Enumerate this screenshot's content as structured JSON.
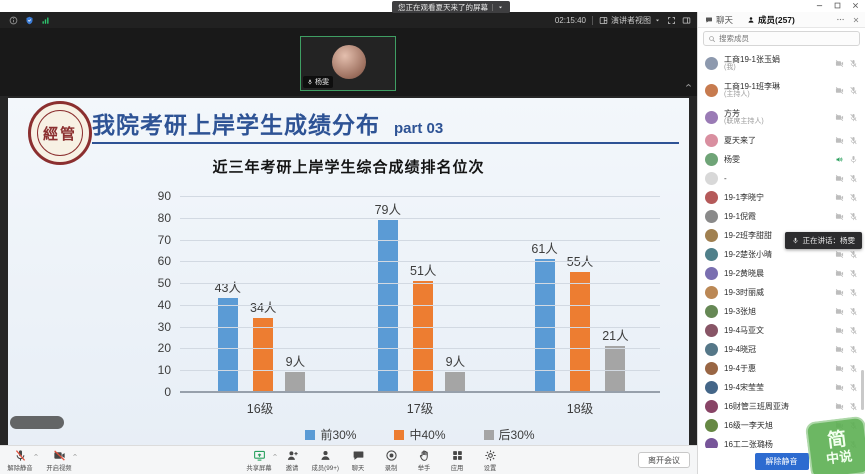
{
  "colors": {
    "accent_blue": "#2d6bd0",
    "share_green": "#27a05e",
    "slash_red": "#e0503c",
    "title_blue": "#2e5395",
    "watermark_green": "#4caf50",
    "bar_blue": "#5B9BD5",
    "bar_orange": "#ED7D31",
    "bar_gray": "#A5A5A5"
  },
  "window": {
    "tooltip": "您正在观看夏天来了的屏幕"
  },
  "topbar": {
    "timer": "02:15:40",
    "view_mode": "演讲者视图"
  },
  "video_thumbnail": {
    "name": "杨雯"
  },
  "slide": {
    "logo_text": "經管",
    "title": "我院考研上岸学生成绩分布",
    "part": "part 03",
    "subtitle": "近三年考研上岸学生综合成绩排名位次"
  },
  "chart_data": {
    "type": "bar",
    "title": "近三年考研上岸学生综合成绩排名位次",
    "categories": [
      "16级",
      "17级",
      "18级"
    ],
    "series": [
      {
        "name": "前30%",
        "color": "#5B9BD5",
        "values": [
          43,
          79,
          61
        ]
      },
      {
        "name": "中40%",
        "color": "#ED7D31",
        "values": [
          34,
          51,
          55
        ]
      },
      {
        "name": "后30%",
        "color": "#A5A5A5",
        "values": [
          9,
          9,
          21
        ]
      }
    ],
    "unit": "人",
    "ylim": [
      0,
      90
    ],
    "ytick_step": 10,
    "grid": true,
    "legend_position": "bottom",
    "xlabel": "",
    "ylabel": ""
  },
  "toolbar": {
    "left_items": [
      {
        "label": "解除静音",
        "icon": "mic-off",
        "caret": true
      },
      {
        "label": "开启视频",
        "icon": "camera-off",
        "caret": true
      }
    ],
    "center_items": [
      {
        "label": "共享屏幕",
        "icon": "share",
        "caret": true
      },
      {
        "label": "邀请",
        "icon": "invite"
      },
      {
        "label": "成员(99+)",
        "icon": "person"
      },
      {
        "label": "聊天",
        "icon": "chat"
      },
      {
        "label": "录制",
        "icon": "record"
      },
      {
        "label": "举手",
        "icon": "hand"
      },
      {
        "label": "应用",
        "icon": "apps"
      },
      {
        "label": "设置",
        "icon": "gear"
      }
    ],
    "leave_label": "离开会议"
  },
  "panel": {
    "tabs": [
      {
        "label": "聊天"
      },
      {
        "label": "成员(257)"
      }
    ],
    "search_placeholder": "搜索成员",
    "speaking_tooltip": "正在讲话：杨雯",
    "unmute_label": "解除静音",
    "members": [
      {
        "name": "工商19-1张玉娟",
        "sub": "(我)"
      },
      {
        "name": "工商19-1班李琳",
        "sub": "(主持人)"
      },
      {
        "name": "方芳",
        "sub": "(联席主持人)"
      },
      {
        "name": "夏天来了"
      },
      {
        "name": "杨雯",
        "speaking": true
      },
      {
        "name": "-"
      },
      {
        "name": "19-1李晓宁"
      },
      {
        "name": "19-1倪霞"
      },
      {
        "name": "19-2班李甜甜"
      },
      {
        "name": "19-2楚张小晴"
      },
      {
        "name": "19-2黄晓晨"
      },
      {
        "name": "19-3时丽威"
      },
      {
        "name": "19-3张旭"
      },
      {
        "name": "19-4马亚文"
      },
      {
        "name": "19-4晓冠"
      },
      {
        "name": "19-4于惠"
      },
      {
        "name": "19-4宋莹莹"
      },
      {
        "name": "16财管三班周亚涛"
      },
      {
        "name": "16级一李天旭"
      },
      {
        "name": "16工二张璐杨"
      }
    ]
  },
  "watermark": {
    "line1": "简",
    "line2": "中说"
  }
}
